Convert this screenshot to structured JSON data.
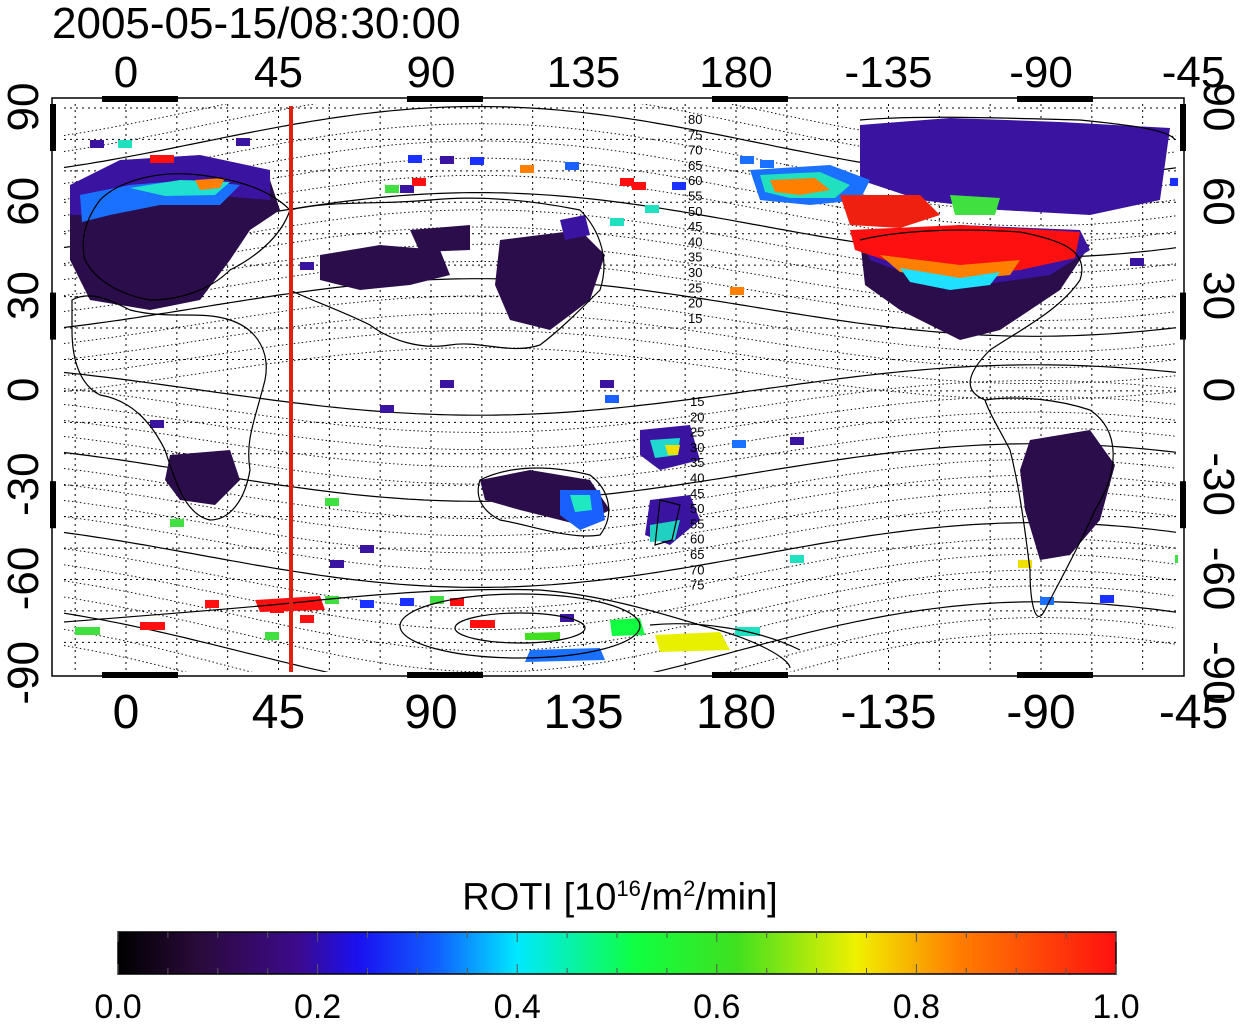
{
  "timestamp": "2005-05-15/08:30:00",
  "map": {
    "lon_ticks": [
      "0",
      "45",
      "90",
      "135",
      "180",
      "-135",
      "-90",
      "-45"
    ],
    "lat_ticks": [
      "90",
      "60",
      "30",
      "0",
      "-30",
      "-60",
      "-90"
    ],
    "mlat_labels_north": [
      "80",
      "75",
      "70",
      "65",
      "60",
      "55",
      "50",
      "45",
      "40",
      "35",
      "30",
      "25",
      "20",
      "15"
    ],
    "mlat_labels_south": [
      "15",
      "20",
      "25",
      "30",
      "35",
      "40",
      "45",
      "50",
      "55",
      "60",
      "65",
      "70",
      "75"
    ],
    "marker_line": {
      "longitude": 52,
      "color": "#e02010"
    }
  },
  "colorbar": {
    "title_prefix": "ROTI  [10",
    "title_exp1": "16",
    "title_mid": "/m",
    "title_exp2": "2",
    "title_suffix": "/min]",
    "tick_labels": [
      "0.0",
      "0.2",
      "0.4",
      "0.6",
      "0.8",
      "1.0"
    ],
    "min": 0.0,
    "max": 1.0
  }
}
